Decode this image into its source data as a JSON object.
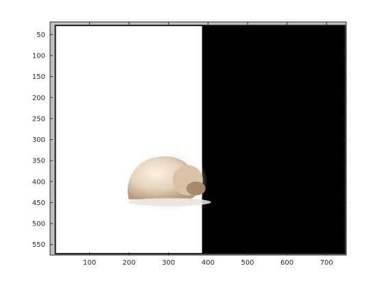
{
  "figure": {
    "background": "#ffffff",
    "axes_background": "#c0c0c0",
    "axis_color": "#262626"
  },
  "image": {
    "description_colors": {
      "left_panel": "#ffffff",
      "right_panel": "#000000",
      "border": "#1a1a1a",
      "subject_fur": "#e8d6c0",
      "subject_shadow": "#b89a7a"
    },
    "icon": "sleeping-dog-icon",
    "x_range": [
      0,
      750
    ],
    "y_range": [
      575,
      20
    ],
    "left_panel_x": [
      15,
      385
    ],
    "right_panel_x": [
      385,
      745
    ],
    "panel_y": [
      30,
      570
    ],
    "subject_center": [
      300,
      400
    ],
    "subject_radius": [
      105,
      85
    ]
  },
  "axes": {
    "x_ticks": [
      "100",
      "200",
      "300",
      "400",
      "500",
      "600",
      "700"
    ],
    "x_tick_values": [
      100,
      200,
      300,
      400,
      500,
      600,
      700
    ],
    "y_ticks": [
      "50",
      "100",
      "150",
      "200",
      "250",
      "300",
      "350",
      "400",
      "450",
      "500",
      "550"
    ],
    "y_tick_values": [
      50,
      100,
      150,
      200,
      250,
      300,
      350,
      400,
      450,
      500,
      550
    ]
  }
}
